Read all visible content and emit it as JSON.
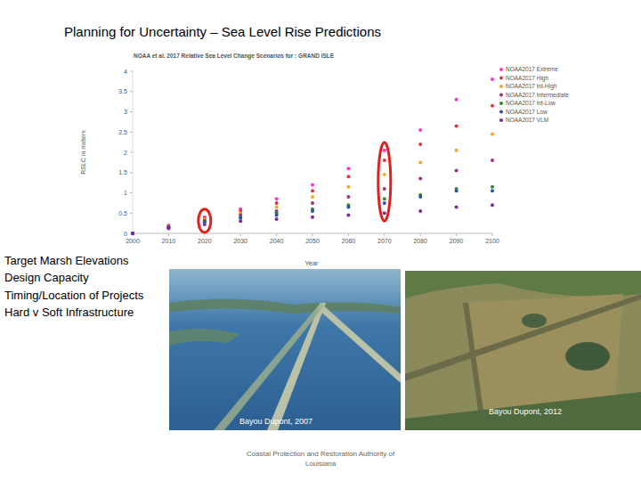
{
  "slide": {
    "title": "Planning for Uncertainty – Sea Level Rise Predictions",
    "bullets": [
      "Target Marsh Elevations",
      "Design Capacity",
      "Timing/Location of Projects",
      "Hard v Soft Infrastructure"
    ],
    "photos": [
      {
        "caption": "Bayou Dupont, 2007"
      },
      {
        "caption": "Bayou Dupont, 2012"
      }
    ],
    "footer": "Coastal Protection and Restoration Authority of Louisiana"
  },
  "chart_data": {
    "type": "scatter",
    "title": "NOAA et al. 2017 Relative Sea Level Change Scenarios for : GRAND ISLE",
    "x_label": "Year",
    "y_label": "RSLC in meters",
    "x": [
      2000,
      2010,
      2020,
      2030,
      2040,
      2050,
      2060,
      2070,
      2080,
      2090,
      2100
    ],
    "series": [
      {
        "name": "NOAA2017 Extreme",
        "color": "#ff33cc",
        "marker": "circle",
        "values": [
          0,
          0.2,
          0.4,
          0.6,
          0.85,
          1.2,
          1.6,
          2.05,
          2.55,
          3.3,
          3.8
        ]
      },
      {
        "name": "NOAA2017 High",
        "color": "#e8303a",
        "marker": "circle",
        "values": [
          0,
          0.18,
          0.38,
          0.55,
          0.75,
          1.05,
          1.4,
          1.8,
          2.2,
          2.65,
          3.15
        ]
      },
      {
        "name": "NOAA2017 Int-High",
        "color": "#f5a623",
        "marker": "circle",
        "values": [
          0,
          0.17,
          0.35,
          0.5,
          0.65,
          0.9,
          1.15,
          1.45,
          1.75,
          2.05,
          2.45
        ]
      },
      {
        "name": "NOAA2017 Intermediate",
        "color": "#a0307c",
        "marker": "circle",
        "values": [
          0,
          0.16,
          0.32,
          0.45,
          0.55,
          0.75,
          0.9,
          1.1,
          1.35,
          1.55,
          1.8
        ]
      },
      {
        "name": "NOAA2017 Int-Low",
        "color": "#2e8b2e",
        "marker": "circle",
        "values": [
          0,
          0.15,
          0.3,
          0.4,
          0.5,
          0.6,
          0.7,
          0.85,
          0.95,
          1.1,
          1.15
        ]
      },
      {
        "name": "NOAA2017 Low",
        "color": "#2a4fb5",
        "marker": "circle",
        "values": [
          0,
          0.14,
          0.28,
          0.38,
          0.45,
          0.55,
          0.65,
          0.75,
          0.9,
          1.05,
          1.05
        ]
      },
      {
        "name": "NOAA2017 VLM",
        "color": "#7a2a9a",
        "marker": "circle",
        "values": [
          0,
          0.12,
          0.22,
          0.3,
          0.35,
          0.4,
          0.45,
          0.5,
          0.55,
          0.65,
          0.7
        ]
      }
    ],
    "highlighted_x": [
      2020,
      2070
    ],
    "xlim": [
      2000,
      2100
    ],
    "xticks": [
      2000,
      2010,
      2020,
      2030,
      2040,
      2050,
      2060,
      2070,
      2080,
      2090,
      2100
    ],
    "ylim": [
      0,
      4
    ],
    "yticks": [
      0,
      0.5,
      1,
      1.5,
      2,
      2.5,
      3,
      3.5,
      4
    ],
    "grid": false,
    "legend": "right"
  }
}
